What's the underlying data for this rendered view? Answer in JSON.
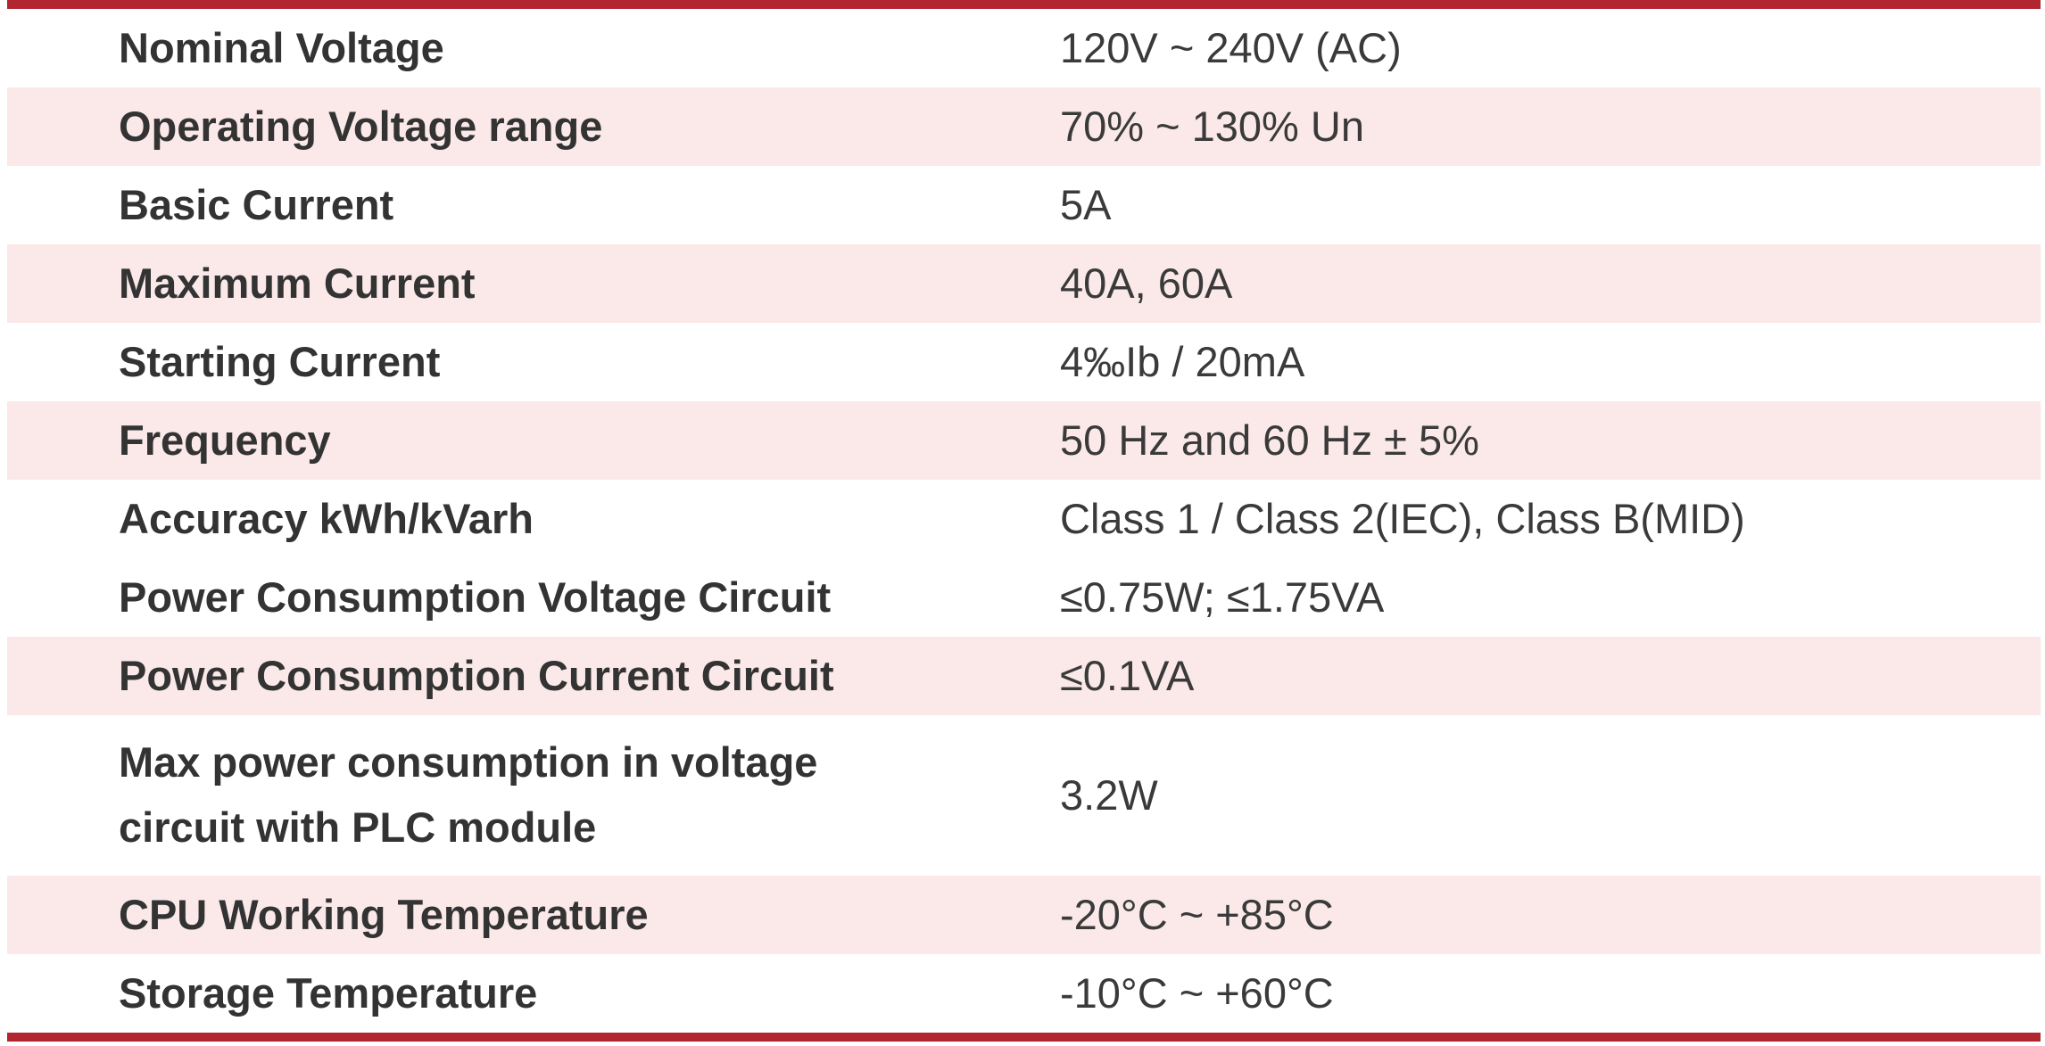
{
  "table": {
    "accent_color": "#b2262f",
    "stripe_color": "#fae9e8",
    "text_color": "#333333",
    "rows": [
      {
        "label": "Nominal Voltage",
        "value": "120V ~ 240V (AC)",
        "striped": false
      },
      {
        "label": "Operating Voltage range",
        "value": "70% ~ 130% Un",
        "striped": true
      },
      {
        "label": "Basic Current",
        "value": "5A",
        "striped": false
      },
      {
        "label": "Maximum Current",
        "value": "40A, 60A",
        "striped": true
      },
      {
        "label": "Starting Current",
        "value": "4‰Ib / 20mA",
        "striped": false
      },
      {
        "label": "Frequency",
        "value": "50 Hz and 60 Hz ± 5%",
        "striped": true
      },
      {
        "label": "Accuracy kWh/kVarh",
        "value": "Class 1 / Class 2(IEC), Class B(MID)",
        "striped": false
      },
      {
        "label": "Power Consumption Voltage Circuit",
        "value": "≤0.75W; ≤1.75VA",
        "striped": false
      },
      {
        "label": "Power Consumption Current Circuit",
        "value": "≤0.1VA",
        "striped": true
      },
      {
        "label": "Max power consumption in voltage\ncircuit with PLC module",
        "value": "3.2W",
        "striped": false
      },
      {
        "label": "CPU Working Temperature",
        "value": "-20°C ~ +85°C",
        "striped": true
      },
      {
        "label": "Storage Temperature",
        "value": "-10°C ~ +60°C",
        "striped": false
      }
    ]
  }
}
